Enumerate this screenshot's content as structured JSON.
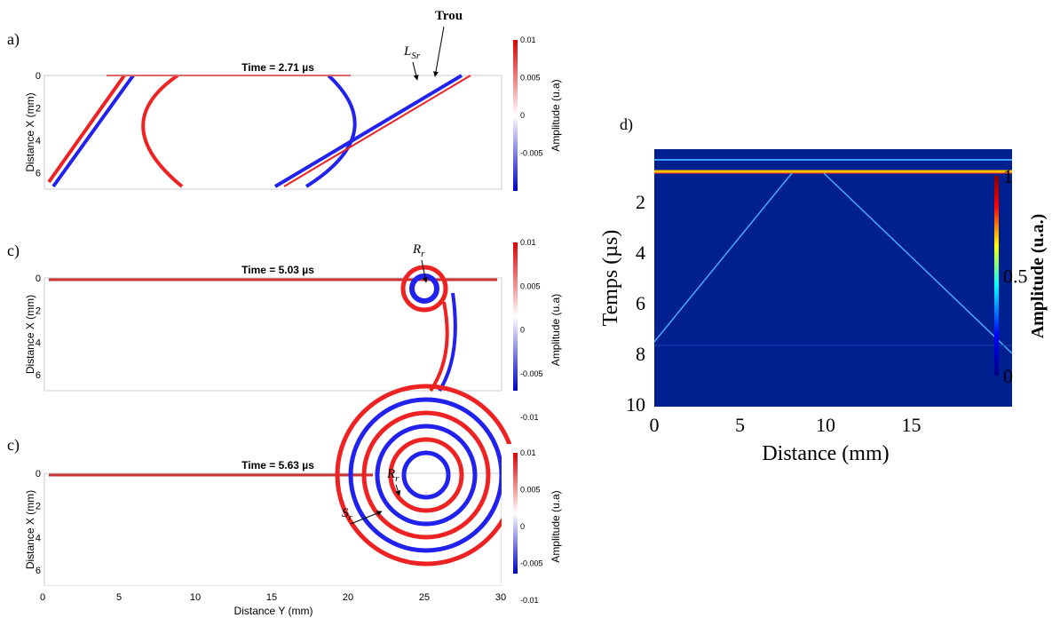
{
  "panels": [
    {
      "label": "a)",
      "title": "Time = 2.71 µs",
      "ylabel": "Distance X (mm)",
      "yticks": [
        0,
        2,
        4,
        6
      ],
      "colorbar_label": "Amplitude (u.a)",
      "colorbar_ticks": [
        0.01,
        0.005,
        0,
        -0.005
      ],
      "annotations": [
        {
          "main": "L",
          "sub": "Sr"
        },
        {
          "main": "Trou"
        }
      ]
    },
    {
      "label": "c)",
      "title": "Time = 5.03 µs",
      "ylabel": "Distance X (mm)",
      "yticks": [
        0,
        2,
        4,
        6
      ],
      "colorbar_label": "Amplitude (u.a)",
      "colorbar_ticks": [
        0.01,
        0.005,
        0,
        -0.005,
        -0.01
      ],
      "annotations": [
        {
          "main": "R",
          "sub": "r"
        }
      ]
    },
    {
      "label": "c)",
      "title": "Time = 5.63 µs",
      "ylabel": "Distance X (mm)",
      "yticks": [
        0,
        2,
        4,
        6
      ],
      "colorbar_label": "Amplitude (u.a)",
      "colorbar_ticks": [
        0.01,
        0.005,
        0,
        -0.005,
        -0.01
      ],
      "annotations": [
        {
          "main": "R",
          "sub": "r"
        },
        {
          "main": "S",
          "sub": "r"
        }
      ],
      "xlabel": "Distance Y (mm)",
      "xticks": [
        0,
        5,
        10,
        15,
        20,
        25,
        30
      ]
    }
  ],
  "panel_d": {
    "label": "d)",
    "ylabel": "Temps (µs)",
    "yticks": [
      2,
      4,
      6,
      8,
      10
    ],
    "xlabel": "Distance (mm)",
    "xticks": [
      0,
      5,
      10,
      15
    ],
    "colorbar_label": "Amplitude (u.a.)",
    "colorbar_ticks": [
      1,
      0.5,
      0
    ]
  }
}
